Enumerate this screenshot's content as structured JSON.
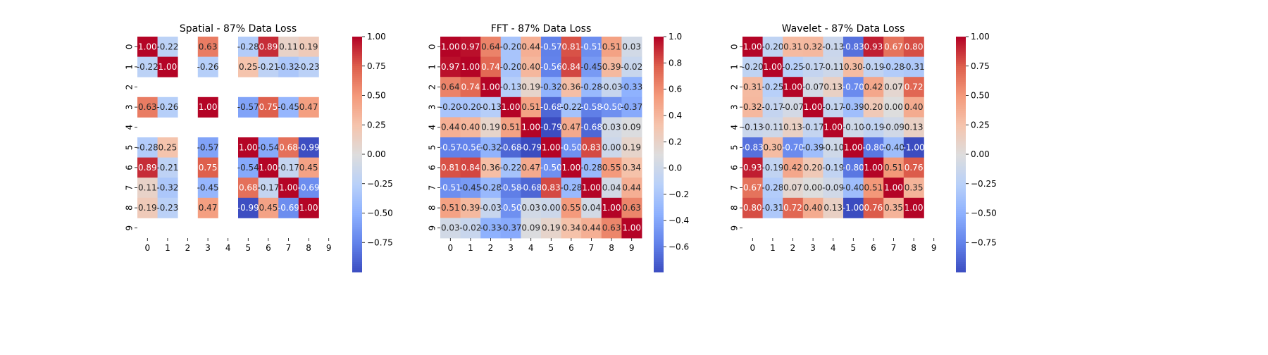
{
  "chart_data": [
    {
      "type": "heatmap",
      "title": "Spatial - 87% Data Loss",
      "x_ticks": [
        "0",
        "1",
        "2",
        "3",
        "4",
        "5",
        "6",
        "7",
        "8",
        "9"
      ],
      "y_ticks": [
        "0",
        "1",
        "2",
        "3",
        "4",
        "5",
        "6",
        "7",
        "8",
        "9"
      ],
      "colorbar": {
        "range": [
          -1.0,
          1.0
        ],
        "ticks": [
          "1.00",
          "0.75",
          "0.50",
          "0.25",
          "0.00",
          "−0.25",
          "−0.50",
          "−0.75"
        ],
        "tick_values": [
          1.0,
          0.75,
          0.5,
          0.25,
          0.0,
          -0.25,
          -0.5,
          -0.75
        ]
      },
      "colormap": "coolwarm",
      "values": [
        [
          1.0,
          -0.22,
          null,
          0.63,
          null,
          -0.28,
          0.89,
          0.11,
          0.19,
          null
        ],
        [
          -0.22,
          1.0,
          null,
          -0.26,
          null,
          0.25,
          -0.21,
          -0.32,
          -0.23,
          null
        ],
        [
          null,
          null,
          null,
          null,
          null,
          null,
          null,
          null,
          null,
          null
        ],
        [
          0.63,
          -0.26,
          null,
          1.0,
          null,
          -0.57,
          0.75,
          -0.45,
          0.47,
          null
        ],
        [
          null,
          null,
          null,
          null,
          null,
          null,
          null,
          null,
          null,
          null
        ],
        [
          -0.28,
          0.25,
          null,
          -0.57,
          null,
          1.0,
          -0.54,
          0.68,
          -0.99,
          null
        ],
        [
          0.89,
          -0.21,
          null,
          0.75,
          null,
          -0.54,
          1.0,
          -0.17,
          0.45,
          null
        ],
        [
          0.11,
          -0.32,
          null,
          -0.45,
          null,
          0.68,
          -0.17,
          1.0,
          -0.69,
          null
        ],
        [
          0.19,
          -0.23,
          null,
          0.47,
          null,
          -0.99,
          0.45,
          -0.69,
          1.0,
          null
        ],
        [
          null,
          null,
          null,
          null,
          null,
          null,
          null,
          null,
          null,
          null
        ]
      ]
    },
    {
      "type": "heatmap",
      "title": "FFT - 87% Data Loss",
      "x_ticks": [
        "0",
        "1",
        "2",
        "3",
        "4",
        "5",
        "6",
        "7",
        "8",
        "9"
      ],
      "y_ticks": [
        "0",
        "1",
        "2",
        "3",
        "4",
        "5",
        "6",
        "7",
        "8",
        "9"
      ],
      "colorbar": {
        "range": [
          -0.79,
          1.0
        ],
        "ticks": [
          "1.0",
          "0.8",
          "0.6",
          "0.4",
          "0.2",
          "0.0",
          "−0.2",
          "−0.4",
          "−0.6"
        ],
        "tick_values": [
          1.0,
          0.8,
          0.6,
          0.4,
          0.2,
          0.0,
          -0.2,
          -0.4,
          -0.6
        ]
      },
      "colormap": "coolwarm",
      "values": [
        [
          1.0,
          0.97,
          0.64,
          -0.2,
          0.44,
          -0.57,
          0.81,
          -0.51,
          0.51,
          0.03
        ],
        [
          0.97,
          1.0,
          0.74,
          -0.2,
          0.4,
          -0.56,
          0.84,
          -0.45,
          0.39,
          -0.02
        ],
        [
          0.64,
          0.74,
          1.0,
          -0.13,
          0.19,
          -0.32,
          0.36,
          -0.28,
          -0.03,
          -0.33
        ],
        [
          -0.2,
          -0.2,
          -0.13,
          1.0,
          0.51,
          -0.68,
          -0.22,
          -0.58,
          -0.5,
          -0.37
        ],
        [
          0.44,
          0.4,
          0.19,
          0.51,
          1.0,
          -0.79,
          0.47,
          -0.68,
          0.03,
          0.09
        ],
        [
          -0.57,
          -0.56,
          -0.32,
          -0.68,
          -0.79,
          1.0,
          -0.5,
          0.83,
          -0.0,
          0.19
        ],
        [
          0.81,
          0.84,
          0.36,
          -0.22,
          0.47,
          -0.5,
          1.0,
          -0.28,
          0.55,
          0.34
        ],
        [
          -0.51,
          -0.45,
          -0.28,
          -0.58,
          -0.68,
          0.83,
          -0.28,
          1.0,
          0.04,
          0.44
        ],
        [
          0.51,
          0.39,
          -0.03,
          -0.5,
          0.03,
          -0.0,
          0.55,
          0.04,
          1.0,
          0.63
        ],
        [
          0.03,
          -0.02,
          -0.33,
          -0.37,
          0.09,
          0.19,
          0.34,
          0.44,
          0.63,
          1.0
        ]
      ]
    },
    {
      "type": "heatmap",
      "title": "Wavelet - 87% Data Loss",
      "x_ticks": [
        "0",
        "1",
        "2",
        "3",
        "4",
        "5",
        "6",
        "7",
        "8",
        "9"
      ],
      "y_ticks": [
        "0",
        "1",
        "2",
        "3",
        "4",
        "5",
        "6",
        "7",
        "8",
        "9"
      ],
      "colorbar": {
        "range": [
          -1.0,
          1.0
        ],
        "ticks": [
          "1.00",
          "0.75",
          "0.50",
          "0.25",
          "0.00",
          "−0.25",
          "−0.50",
          "−0.75"
        ],
        "tick_values": [
          1.0,
          0.75,
          0.5,
          0.25,
          0.0,
          -0.25,
          -0.5,
          -0.75
        ]
      },
      "colormap": "coolwarm",
      "values": [
        [
          1.0,
          -0.2,
          0.31,
          0.32,
          -0.13,
          -0.83,
          0.93,
          0.67,
          0.8,
          null
        ],
        [
          -0.2,
          1.0,
          -0.25,
          -0.17,
          -0.11,
          0.3,
          -0.19,
          -0.28,
          -0.31,
          null
        ],
        [
          0.31,
          -0.25,
          1.0,
          -0.07,
          0.13,
          -0.7,
          0.42,
          0.07,
          0.72,
          null
        ],
        [
          0.32,
          -0.17,
          -0.07,
          1.0,
          -0.17,
          -0.39,
          0.2,
          0.0,
          0.4,
          null
        ],
        [
          -0.13,
          -0.11,
          0.13,
          -0.17,
          1.0,
          -0.1,
          -0.19,
          -0.09,
          0.13,
          null
        ],
        [
          -0.83,
          0.3,
          -0.7,
          -0.39,
          -0.1,
          1.0,
          -0.8,
          -0.4,
          -1.0,
          null
        ],
        [
          0.93,
          -0.19,
          0.42,
          0.2,
          -0.19,
          -0.8,
          1.0,
          0.51,
          0.76,
          null
        ],
        [
          0.67,
          -0.28,
          0.07,
          0.0,
          -0.09,
          -0.4,
          0.51,
          1.0,
          0.35,
          null
        ],
        [
          0.8,
          -0.31,
          0.72,
          0.4,
          0.13,
          -1.0,
          0.76,
          0.35,
          1.0,
          null
        ],
        [
          null,
          null,
          null,
          null,
          null,
          null,
          null,
          null,
          null,
          null
        ]
      ]
    }
  ]
}
